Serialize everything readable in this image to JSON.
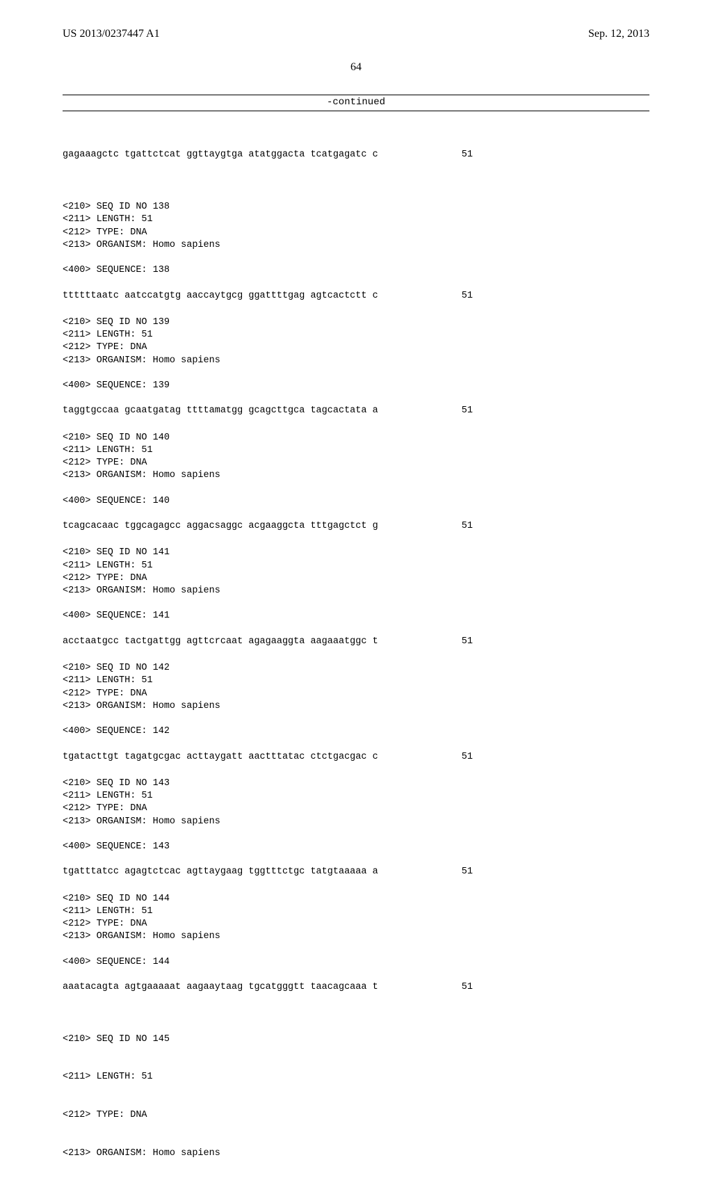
{
  "header": {
    "publication_number": "US 2013/0237447 A1",
    "publication_date": "Sep. 12, 2013"
  },
  "page_number": "64",
  "continued_label": "-continued",
  "top_sequence": {
    "text": "gagaaagctc tgattctcat ggttaygtga atatggacta tcatgagatc c",
    "length": "51"
  },
  "entries": [
    {
      "seq_id": "<210> SEQ ID NO 138",
      "length": "<211> LENGTH: 51",
      "type": "<212> TYPE: DNA",
      "organism": "<213> ORGANISM: Homo sapiens",
      "seq_label": "<400> SEQUENCE: 138",
      "seq_text": "ttttttaatc aatccatgtg aaccaytgcg ggattttgag agtcactctt c",
      "seq_len": "51"
    },
    {
      "seq_id": "<210> SEQ ID NO 139",
      "length": "<211> LENGTH: 51",
      "type": "<212> TYPE: DNA",
      "organism": "<213> ORGANISM: Homo sapiens",
      "seq_label": "<400> SEQUENCE: 139",
      "seq_text": "taggtgccaa gcaatgatag ttttamatgg gcagcttgca tagcactata a",
      "seq_len": "51"
    },
    {
      "seq_id": "<210> SEQ ID NO 140",
      "length": "<211> LENGTH: 51",
      "type": "<212> TYPE: DNA",
      "organism": "<213> ORGANISM: Homo sapiens",
      "seq_label": "<400> SEQUENCE: 140",
      "seq_text": "tcagcacaac tggcagagcc aggacsaggc acgaaggcta tttgagctct g",
      "seq_len": "51"
    },
    {
      "seq_id": "<210> SEQ ID NO 141",
      "length": "<211> LENGTH: 51",
      "type": "<212> TYPE: DNA",
      "organism": "<213> ORGANISM: Homo sapiens",
      "seq_label": "<400> SEQUENCE: 141",
      "seq_text": "acctaatgcc tactgattgg agttcrcaat agagaaggta aagaaatggc t",
      "seq_len": "51"
    },
    {
      "seq_id": "<210> SEQ ID NO 142",
      "length": "<211> LENGTH: 51",
      "type": "<212> TYPE: DNA",
      "organism": "<213> ORGANISM: Homo sapiens",
      "seq_label": "<400> SEQUENCE: 142",
      "seq_text": "tgatacttgt tagatgcgac acttaygatt aactttatac ctctgacgac c",
      "seq_len": "51"
    },
    {
      "seq_id": "<210> SEQ ID NO 143",
      "length": "<211> LENGTH: 51",
      "type": "<212> TYPE: DNA",
      "organism": "<213> ORGANISM: Homo sapiens",
      "seq_label": "<400> SEQUENCE: 143",
      "seq_text": "tgatttatcc agagtctcac agttaygaag tggtttctgc tatgtaaaaa a",
      "seq_len": "51"
    },
    {
      "seq_id": "<210> SEQ ID NO 144",
      "length": "<211> LENGTH: 51",
      "type": "<212> TYPE: DNA",
      "organism": "<213> ORGANISM: Homo sapiens",
      "seq_label": "<400> SEQUENCE: 144",
      "seq_text": "aaatacagta agtgaaaaat aagaaytaag tgcatgggtt taacagcaaa t",
      "seq_len": "51"
    }
  ],
  "tail_entry": {
    "seq_id": "<210> SEQ ID NO 145",
    "length": "<211> LENGTH: 51",
    "type": "<212> TYPE: DNA",
    "organism": "<213> ORGANISM: Homo sapiens"
  }
}
